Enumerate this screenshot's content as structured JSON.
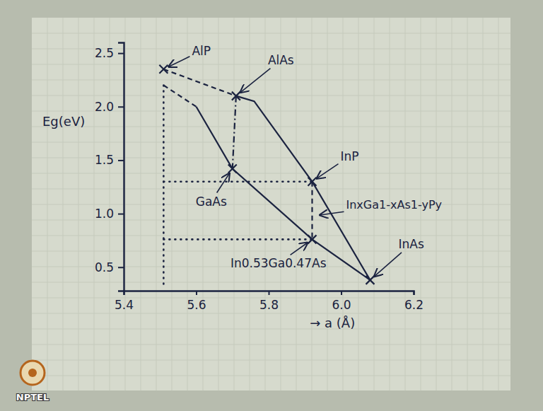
{
  "chart_data": {
    "type": "line",
    "xlabel": "→ a (Å)",
    "ylabel": "Eg(eV)",
    "xlim": [
      5.4,
      6.2
    ],
    "ylim": [
      0.28,
      2.6
    ],
    "xticks": [
      5.4,
      5.6,
      5.8,
      {
        "value": 6.0,
        "label": "6.0"
      },
      6.2
    ],
    "yticks": [
      0.5,
      {
        "value": 1.0,
        "label": "1.0"
      },
      1.5,
      {
        "value": 2.0,
        "label": "2.0"
      },
      2.5
    ],
    "grid": false,
    "marker": "x",
    "color": "#1b2340",
    "series": [
      {
        "x": [
          5.51,
          5.71
        ],
        "values": [
          2.35,
          2.1
        ],
        "line_style": "dashed"
      },
      {
        "x": [
          5.71,
          5.76,
          5.92,
          6.08
        ],
        "values": [
          2.1,
          2.05,
          1.3,
          0.38
        ],
        "line_style": "solid"
      },
      {
        "x": [
          5.51,
          5.6
        ],
        "values": [
          2.2,
          2.0
        ],
        "line_style": "dashed"
      },
      {
        "x": [
          5.6,
          5.7,
          5.92,
          6.08
        ],
        "values": [
          2.0,
          1.42,
          0.76,
          0.38
        ],
        "line_style": "solid"
      },
      {
        "x": [
          5.71,
          5.7
        ],
        "values": [
          2.1,
          1.42
        ],
        "line_style": "dashdot"
      },
      {
        "x": [
          5.92,
          5.92
        ],
        "values": [
          1.3,
          0.76
        ],
        "line_style": "dashed"
      },
      {
        "x": [
          5.51,
          5.51
        ],
        "values": [
          2.2,
          0.3
        ],
        "line_style": "dotted"
      },
      {
        "x": [
          5.51,
          5.92
        ],
        "values": [
          1.3,
          1.3
        ],
        "line_style": "dotted"
      },
      {
        "x": [
          5.51,
          5.92
        ],
        "values": [
          0.76,
          0.76
        ],
        "line_style": "dotted"
      }
    ],
    "points": [
      {
        "label": "AlP",
        "x": 5.51,
        "y": 2.35
      },
      {
        "label": "AlAs",
        "x": 5.71,
        "y": 2.1
      },
      {
        "label": "GaAs",
        "x": 5.7,
        "y": 1.42
      },
      {
        "label": "InP",
        "x": 5.92,
        "y": 1.3
      },
      {
        "label": "InAs",
        "x": 6.08,
        "y": 0.38
      },
      {
        "label": "In0.53Ga0.47As",
        "x": 5.92,
        "y": 0.76
      }
    ],
    "annotations": [
      {
        "text": "InxGa1-xAs1-yPy",
        "x": 5.92,
        "y": 0.98
      }
    ],
    "watermark": "NPTEL"
  }
}
